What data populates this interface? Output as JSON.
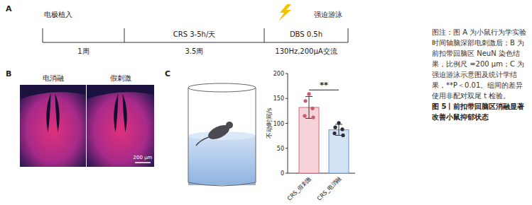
{
  "panel_labels": [
    "A",
    "B",
    "C"
  ],
  "timeline": {
    "events": [
      "电极植入",
      "强迫游泳"
    ],
    "phases": [
      "CRS 3-5h/天",
      "DBS 0.5h"
    ],
    "durations": [
      "1周",
      "3.5周",
      "130Hz,200μA交流"
    ]
  },
  "staining": {
    "labels": [
      "电消融",
      "假刺激"
    ],
    "scale_bar": "200 μm"
  },
  "chart_data": {
    "type": "bar",
    "categories": [
      "CRS_假刺激",
      "CRS_电消融"
    ],
    "values": [
      132,
      87
    ],
    "errors": [
      22,
      11
    ],
    "points": [
      [
        159,
        145,
        130,
        115,
        112
      ],
      [
        101,
        92,
        88,
        80,
        76
      ]
    ],
    "colors": [
      "#f6d3d8",
      "#d0e2f3"
    ],
    "ylabel": "不动时间/s",
    "ylim": [
      0,
      200
    ],
    "yticks": [
      0,
      50,
      100,
      150,
      200
    ],
    "grid": false,
    "annotations": [
      {
        "text": "**",
        "from": 0,
        "to": 1,
        "y": 167
      }
    ]
  },
  "caption": {
    "text": "图注：图 A 为小鼠行为学实验时间轴脑深部电刺激后；B 为前扣带回脑区 NeuN 染色结果，比例尺 =200 μm；C 为强迫游泳示意图及统计学结果，**P＜0.01。组间的差异使用非配对双尾 t 检验。",
    "title": "图 5丨前扣带回脑区消融显著改善小鼠抑郁状态"
  }
}
